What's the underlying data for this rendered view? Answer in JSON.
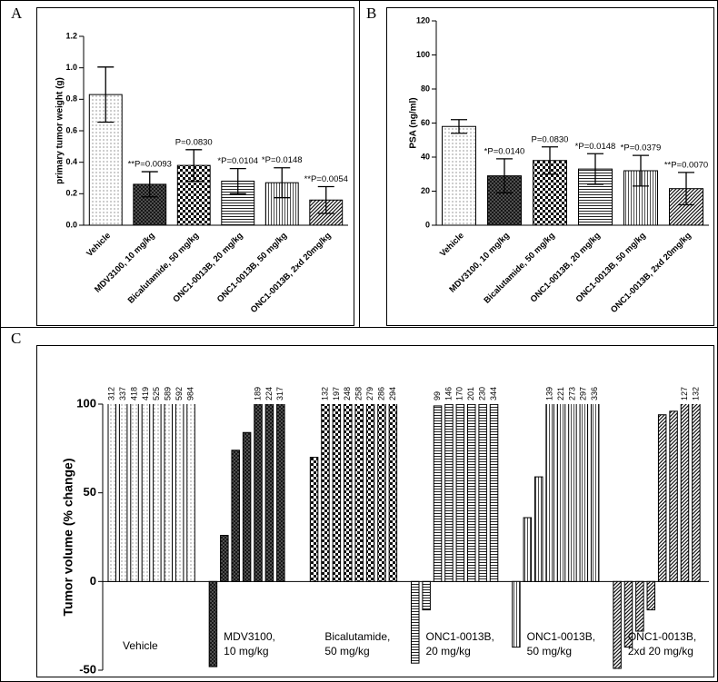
{
  "chart_data": [
    {
      "type": "bar",
      "panel": "A",
      "ylabel": "primary tumor weight (g)",
      "categories": [
        "Vehicle",
        "MDV3100, 10 mg/kg",
        "Bicalutamide, 50 mg/kg",
        "ONC1-0013B, 20 mg/kg",
        "ONC1-0013B, 50 mg/kg",
        "ONC1-0013B, 2xd 20mg/kg"
      ],
      "values": [
        0.83,
        0.26,
        0.38,
        0.28,
        0.27,
        0.16
      ],
      "errors": [
        0.175,
        0.08,
        0.1,
        0.08,
        0.095,
        0.085
      ],
      "annotations": [
        null,
        "**P=0.0093",
        "P=0.0830",
        "*P=0.0104",
        "*P=0.0148",
        "**P=0.0054"
      ],
      "patterns": [
        "dots",
        "cross",
        "checker",
        "hlines",
        "vlines",
        "diag"
      ],
      "ylim": [
        0,
        1.2
      ],
      "yticks": [
        {
          "value": 0,
          "label": "0.0"
        },
        0.2,
        0.4,
        0.6,
        0.8,
        {
          "value": 1,
          "label": "1.0"
        },
        1.2
      ]
    },
    {
      "type": "bar",
      "panel": "B",
      "ylabel": "PSA (ng/ml)",
      "categories": [
        "Vehicle",
        "MDV3100, 10 mg/kg",
        "Bicalutamide, 50 mg/kg",
        "ONC1-0013B, 20 mg/kg",
        "ONC1-0013B, 50 mg/kg",
        "ONC1-0013B, 2xd 20mg/kg"
      ],
      "values": [
        58,
        29,
        38,
        33,
        32,
        21.5
      ],
      "errors": [
        4,
        10,
        8,
        9,
        9,
        9.5
      ],
      "annotations": [
        null,
        "*P=0.0140",
        "P=0.0830",
        "*P=0.0148",
        "*P=0.0379",
        "**P=0.0070"
      ],
      "patterns": [
        "dots",
        "cross",
        "checker",
        "hlines",
        "vlines",
        "diag"
      ],
      "ylim": [
        0,
        120
      ],
      "yticks": [
        0,
        20,
        40,
        60,
        80,
        100,
        120
      ]
    },
    {
      "type": "waterfall",
      "panel": "C",
      "ylabel": "Tumor volume (% change)",
      "ylim": [
        -50,
        100
      ],
      "yticks": [
        -50,
        0,
        50,
        100
      ],
      "series": [
        {
          "name": [
            "Vehicle"
          ],
          "pattern": "dots",
          "values": [
            312,
            337,
            418,
            419,
            525,
            589,
            592,
            984
          ],
          "value_labels": [
            "312",
            "337",
            "418",
            "419",
            "525",
            "589",
            "592",
            "984"
          ]
        },
        {
          "name": [
            "MDV3100,",
            "10 mg/kg"
          ],
          "pattern": "cross",
          "values": [
            -48,
            26,
            74,
            84,
            189,
            224,
            317
          ],
          "value_labels": [
            null,
            null,
            null,
            null,
            "189",
            "224",
            "317"
          ]
        },
        {
          "name": [
            "Bicalutamide,",
            "50 mg/kg"
          ],
          "pattern": "checker",
          "values": [
            70,
            132,
            197,
            248,
            258,
            279,
            286,
            294
          ],
          "value_labels": [
            null,
            "132",
            "197",
            "248",
            "258",
            "279",
            "286",
            "294"
          ]
        },
        {
          "name": [
            "ONC1-0013B,",
            "20 mg/kg"
          ],
          "pattern": "hlines",
          "values": [
            -46,
            -16,
            99,
            146,
            170,
            201,
            230,
            344
          ],
          "value_labels": [
            null,
            null,
            "99",
            "146",
            "170",
            "201",
            "230",
            "344"
          ]
        },
        {
          "name": [
            "ONC1-0013B,",
            "50 mg/kg"
          ],
          "pattern": "vlines",
          "values": [
            -37,
            36,
            59,
            139,
            221,
            273,
            297,
            336
          ],
          "value_labels": [
            null,
            null,
            null,
            "139",
            "221",
            "273",
            "297",
            "336"
          ]
        },
        {
          "name": [
            "ONC1-0013B,",
            "2xd 20 mg/kg"
          ],
          "pattern": "diag",
          "values": [
            -49,
            -37,
            -28,
            -16,
            94,
            96,
            127,
            132
          ],
          "value_labels": [
            null,
            null,
            null,
            null,
            null,
            null,
            "127",
            "132"
          ]
        }
      ]
    }
  ]
}
